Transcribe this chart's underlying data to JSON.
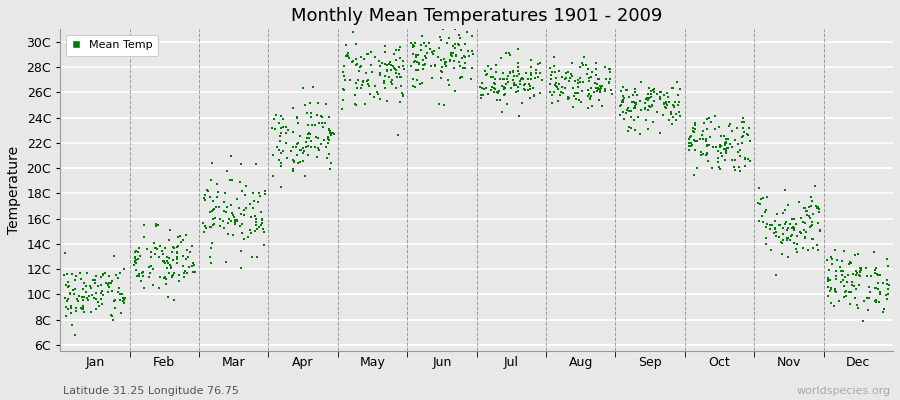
{
  "title": "Monthly Mean Temperatures 1901 - 2009",
  "ylabel": "Temperature",
  "xlabel_labels": [
    "Jan",
    "Feb",
    "Mar",
    "Apr",
    "May",
    "Jun",
    "Jul",
    "Aug",
    "Sep",
    "Oct",
    "Nov",
    "Dec"
  ],
  "ytick_labels": [
    "6C",
    "8C",
    "10C",
    "12C",
    "14C",
    "16C",
    "18C",
    "20C",
    "22C",
    "24C",
    "26C",
    "28C",
    "30C"
  ],
  "ytick_values": [
    6,
    8,
    10,
    12,
    14,
    16,
    18,
    20,
    22,
    24,
    26,
    28,
    30
  ],
  "ylim": [
    5.5,
    31.0
  ],
  "dot_color": "#008000",
  "dot_size": 3,
  "background_color": "#e8e8e8",
  "plot_bg_color": "#e8e8e8",
  "legend_label": "Mean Temp",
  "subtitle": "Latitude 31.25 Longitude 76.75",
  "watermark": "worldspecies.org",
  "month_means": [
    10.0,
    12.5,
    16.5,
    22.5,
    27.5,
    28.5,
    27.0,
    26.5,
    25.0,
    22.0,
    15.5,
    11.0
  ],
  "month_stds": [
    1.2,
    1.4,
    1.6,
    1.5,
    1.4,
    1.2,
    1.0,
    0.9,
    1.0,
    1.2,
    1.4,
    1.2
  ],
  "n_years": 109,
  "figwidth": 9.0,
  "figheight": 4.0,
  "dpi": 100
}
